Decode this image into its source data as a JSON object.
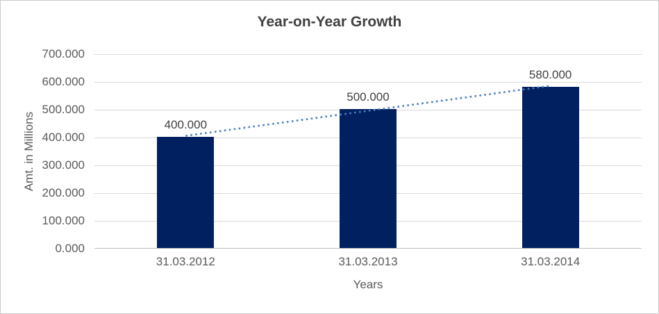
{
  "chart_data": {
    "type": "bar",
    "title": "Year-on-Year Growth",
    "xlabel": "Years",
    "ylabel": "Amt. in Millions",
    "categories": [
      "31.03.2012",
      "31.03.2013",
      "31.03.2014"
    ],
    "values": [
      400,
      500,
      580
    ],
    "value_labels": [
      "400.000",
      "500.000",
      "580.000"
    ],
    "ylim": [
      0,
      700
    ],
    "yticks": [
      {
        "value": 0,
        "label": "0.000"
      },
      {
        "value": 100,
        "label": "100.000"
      },
      {
        "value": 200,
        "label": "200.000"
      },
      {
        "value": 300,
        "label": "300.000"
      },
      {
        "value": 400,
        "label": "400.000"
      },
      {
        "value": 500,
        "label": "500.000"
      },
      {
        "value": 600,
        "label": "600.000"
      },
      {
        "value": 700,
        "label": "700.000"
      },
      {
        "value": 700,
        "label": null
      }
    ],
    "grid": true,
    "legend": "none",
    "bar_color": "#002060",
    "trendline": {
      "type": "linear",
      "style": "dotted",
      "color": "#4a7ebe",
      "from_value": 400,
      "to_value": 580
    }
  },
  "colors": {
    "background": "#ffffff",
    "border": "#c9c9c9",
    "title": "#404040",
    "tick_label": "#595959",
    "data_label": "#404040",
    "gridline": "#d9d9d9",
    "axis_line": "#bfbfbf",
    "bar": "#002060",
    "trendline": "#4a7ebe"
  }
}
